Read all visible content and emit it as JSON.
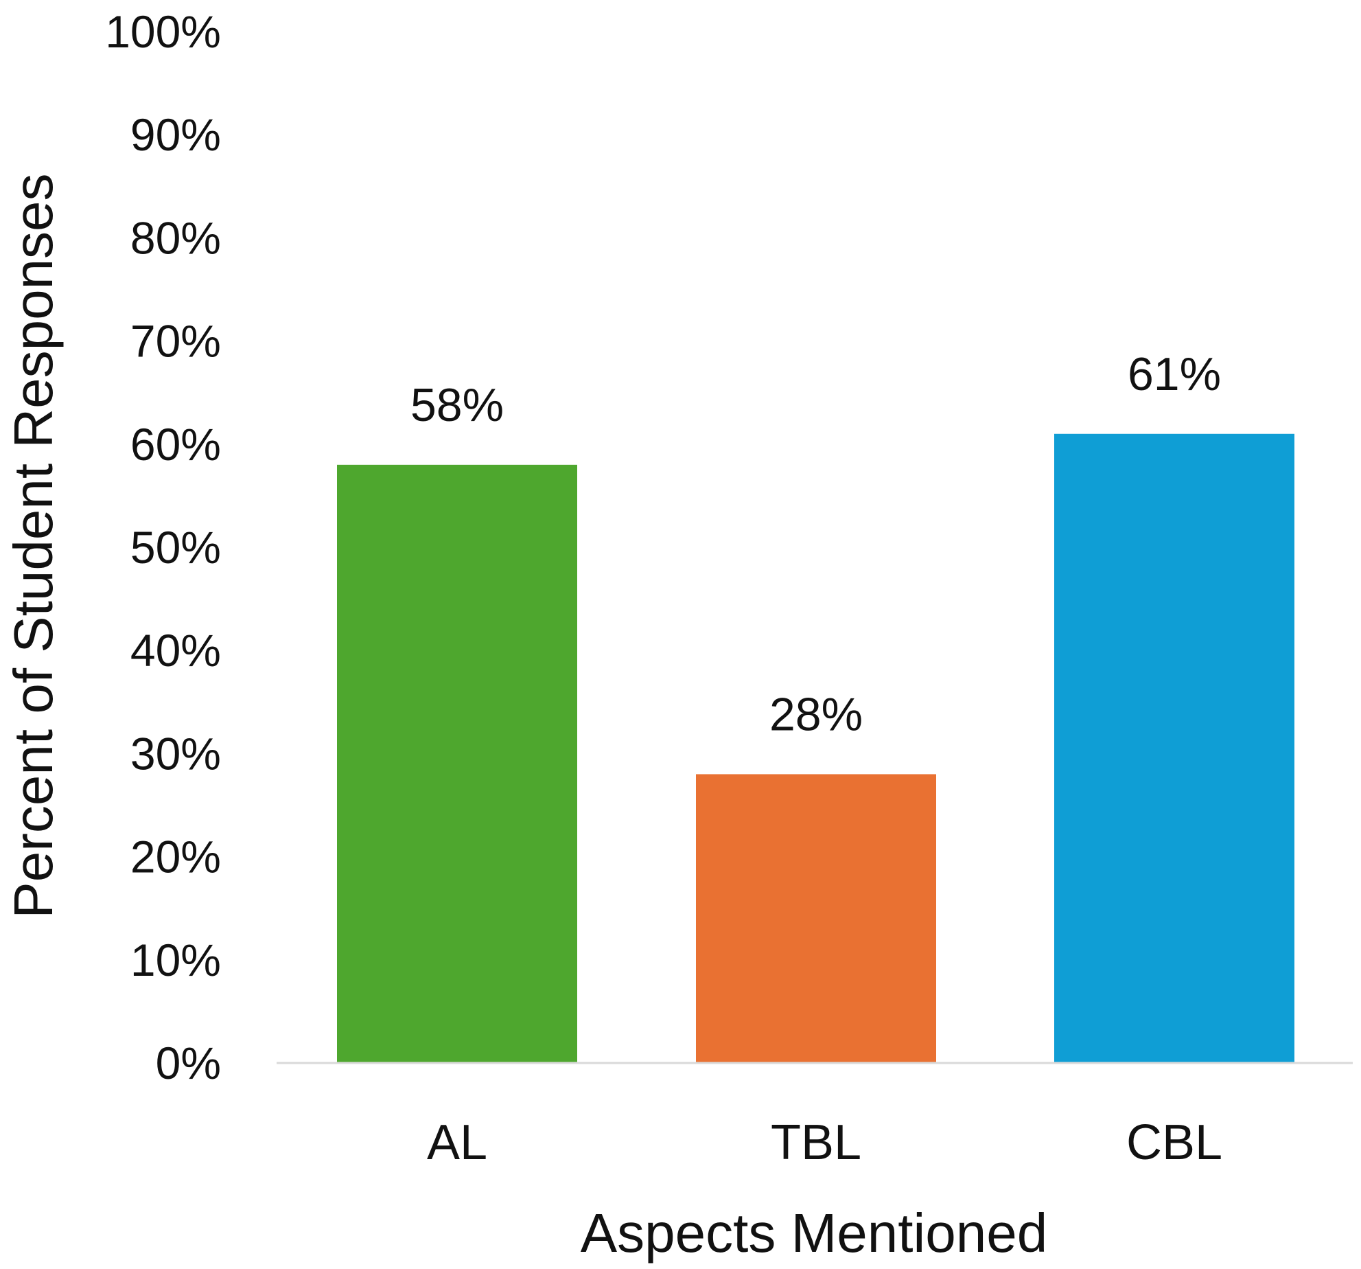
{
  "chart_data": {
    "type": "bar",
    "categories": [
      "AL",
      "TBL",
      "CBL"
    ],
    "values": [
      58,
      28,
      61
    ],
    "data_labels": [
      "58%",
      "28%",
      "61%"
    ],
    "colors": [
      "#4EA72E",
      "#E97132",
      "#0F9ED5"
    ],
    "xlabel": "Aspects Mentioned",
    "ylabel": "Percent of Student Responses",
    "ylim": [
      0,
      100
    ],
    "yticks": [
      0,
      10,
      20,
      30,
      40,
      50,
      60,
      70,
      80,
      90,
      100
    ],
    "ytick_labels": [
      "0%",
      "10%",
      "20%",
      "30%",
      "40%",
      "50%",
      "60%",
      "70%",
      "80%",
      "90%",
      "100%"
    ],
    "axis_color": "#D9D9D9",
    "grid": false,
    "legend": "none"
  }
}
